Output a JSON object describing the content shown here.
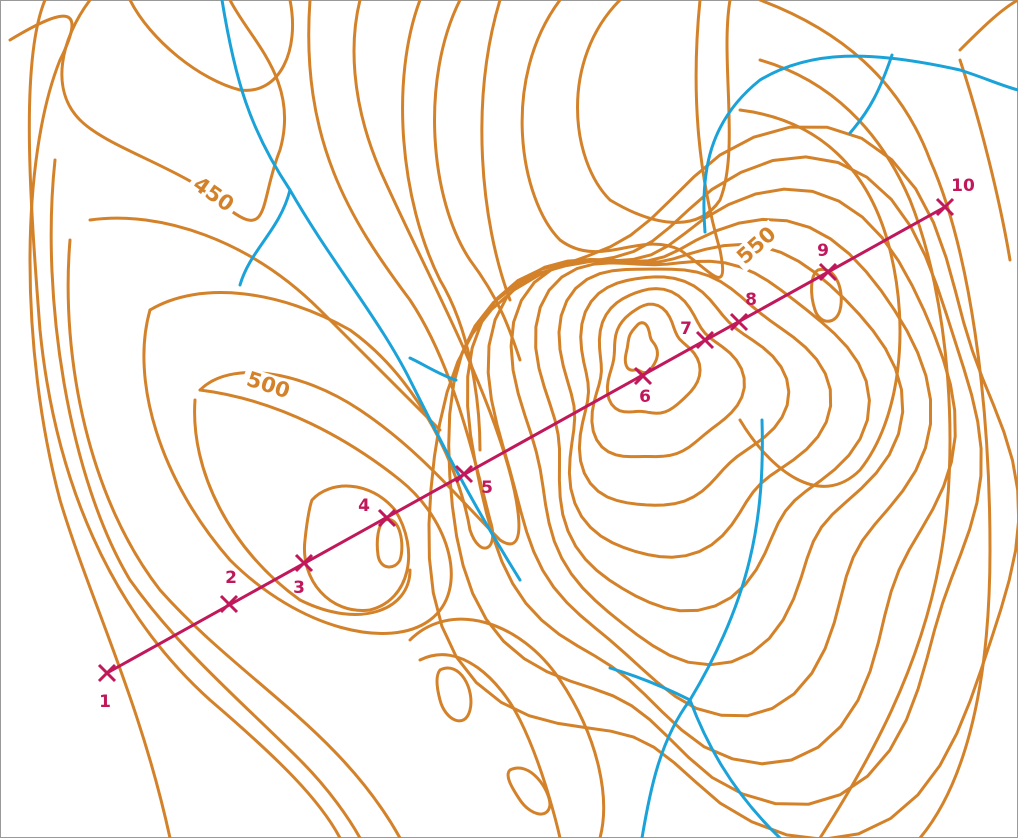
{
  "contour_labels": [
    450,
    500,
    550
  ],
  "points": [
    1,
    2,
    3,
    4,
    5,
    6,
    7,
    8,
    9,
    10
  ]
}
